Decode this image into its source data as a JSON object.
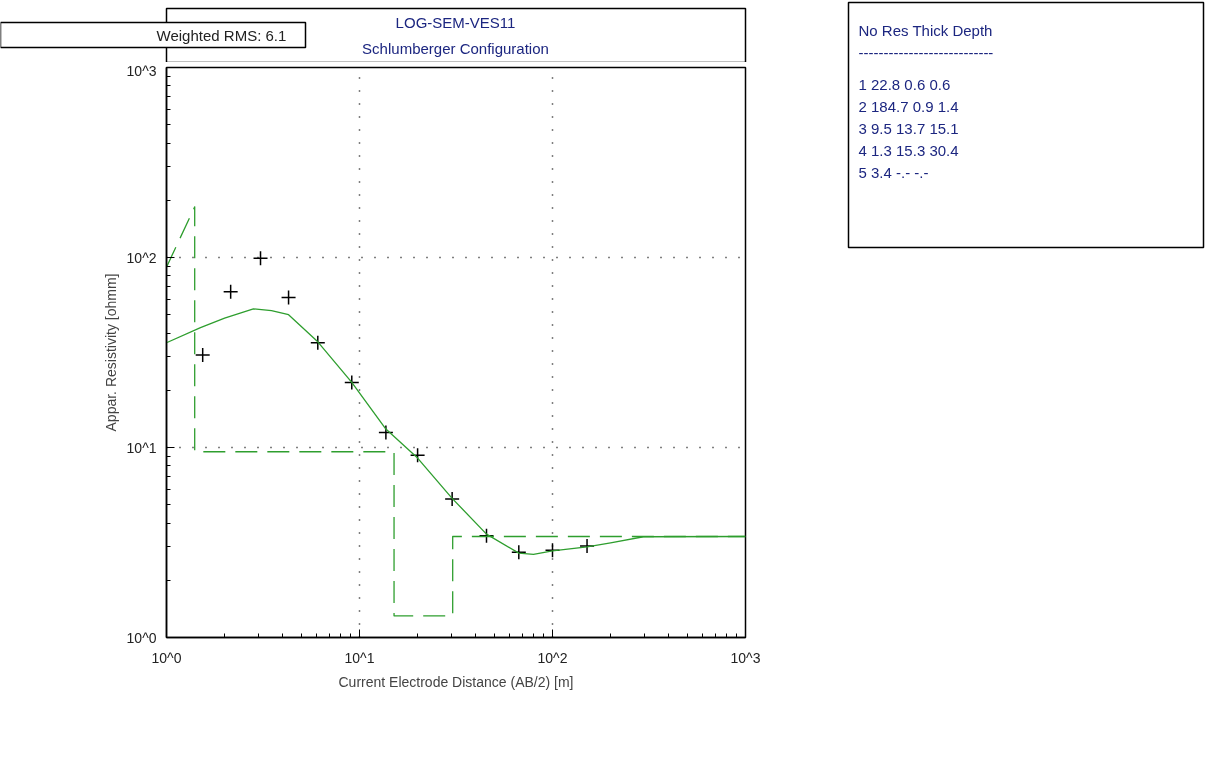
{
  "chart_data": [
    {
      "type": "line",
      "title": "LOG-SEM-VES11",
      "subtitle": "Schlumberger Configuration",
      "xlabel": "Current Electrode Distance (AB/2) [m]",
      "ylabel": "Appar. Resistivity [ohmm]",
      "log": "xy",
      "grid": true,
      "xlim": [
        1,
        1000
      ],
      "ylim": [
        1,
        1000
      ],
      "xticks": [
        {
          "value": 1,
          "label": "10^0"
        },
        {
          "value": 10,
          "label": "10^1"
        },
        {
          "value": 100,
          "label": "10^2"
        },
        {
          "value": 1000,
          "label": "10^3"
        }
      ],
      "yticks": [
        {
          "value": 1,
          "label": "10^0"
        },
        {
          "value": 10,
          "label": "10^1"
        },
        {
          "value": 100,
          "label": "10^2"
        },
        {
          "value": 1000,
          "label": "10^3"
        }
      ],
      "annotations": [
        "Weighted RMS:  6.1"
      ],
      "series": [
        {
          "type": "scatter",
          "marker": "cross",
          "color": "#000000",
          "x": [
            1.54,
            2.15,
            3.07,
            4.29,
            6.08,
            9.12,
            13.7,
            20,
            30.2,
            45.5,
            66.9,
            100,
            151
          ],
          "values": [
            30.7,
            66,
            99,
            61.5,
            35.6,
            22,
            12,
            9.1,
            5.36,
            3.43,
            2.81,
            2.88,
            3.03
          ]
        },
        {
          "type": "line",
          "line_style": "solid",
          "color": "#2e9e2e",
          "x": [
            1,
            1.5,
            2.0,
            2.82,
            3.5,
            4.29,
            6.08,
            9.12,
            13.7,
            20,
            30.2,
            45.5,
            66.9,
            79.7,
            100,
            151,
            200,
            296,
            1000
          ],
          "values": [
            35.6,
            42.7,
            48,
            53.7,
            52.5,
            50,
            36,
            22,
            12.5,
            8.8,
            5.4,
            3.5,
            2.78,
            2.74,
            2.86,
            3.0,
            3.15,
            3.39,
            3.4
          ]
        },
        {
          "type": "line",
          "line_style": "dashed",
          "color": "#2e9e2e",
          "x": [
            1,
            1.4,
            1.4,
            15.1,
            15.1,
            30.4,
            30.4,
            1000
          ],
          "values": [
            89,
            184.7,
            9.5,
            9.5,
            1.3,
            1.3,
            3.4,
            3.4
          ]
        }
      ]
    },
    {
      "type": "other",
      "annotations": [
        "No    Res  Thick  Depth",
        "---------------------------",
        "1   22.8    0.6    0.6",
        "2  184.7    0.9    1.4",
        "3    9.5   13.7   15.1",
        "4    1.3   15.3   30.4",
        "5    3.4    -.-     -.-"
      ]
    }
  ]
}
